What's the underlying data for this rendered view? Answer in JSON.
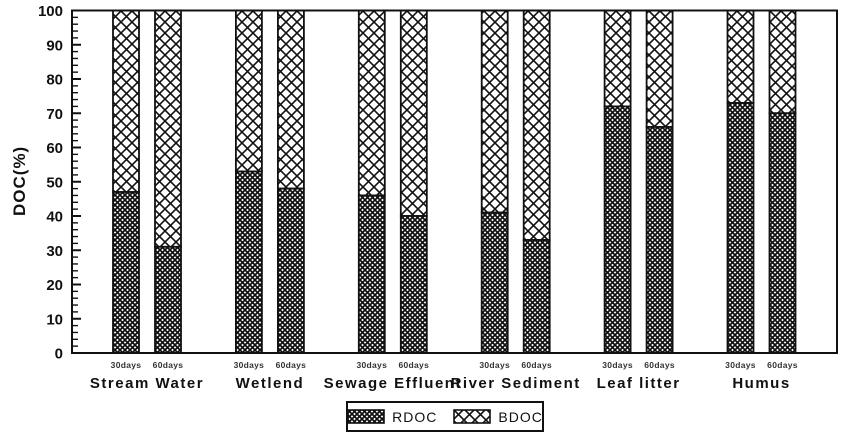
{
  "chart_data": {
    "type": "bar",
    "stacked": true,
    "title": "",
    "ylabel": "DOC(%)",
    "xlabel": "",
    "ylim": [
      0,
      100
    ],
    "ytick_major_step": 10,
    "ytick_minor_step": 2,
    "ytick_labels": [
      "0",
      "10",
      "20",
      "30",
      "40",
      "50",
      "60",
      "70",
      "80",
      "90",
      "100"
    ],
    "grid": false,
    "categories": [
      "Stream Water",
      "Wetlend",
      "Sewage Effluent",
      "River Sediment",
      "Leaf litter",
      "Humus"
    ],
    "bar_sublabels": [
      "30days",
      "60days"
    ],
    "series": [
      {
        "name": "RDOC",
        "pattern": "dense-crosshatch",
        "values": {
          "30days": [
            47,
            53,
            46,
            41,
            72,
            73
          ],
          "60days": [
            31,
            48,
            40,
            33,
            66,
            70
          ]
        }
      },
      {
        "name": "BDOC",
        "pattern": "open-crosshatch",
        "values": {
          "30days": [
            53,
            47,
            54,
            59,
            28,
            27
          ],
          "60days": [
            69,
            52,
            60,
            67,
            34,
            30
          ]
        }
      }
    ],
    "legend": {
      "position": "bottom-center",
      "entries": [
        "RDOC",
        "BDOC"
      ]
    },
    "colors": {
      "ink": "#111111",
      "background": "#ffffff"
    }
  }
}
